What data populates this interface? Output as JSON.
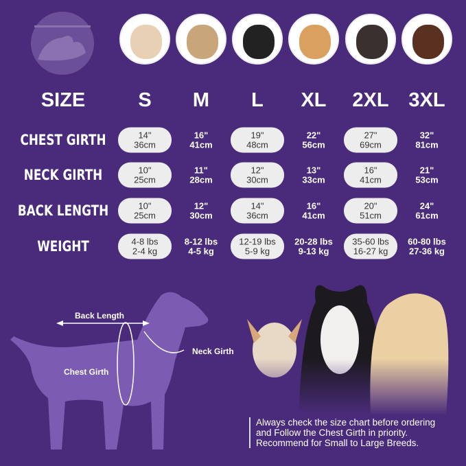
{
  "colors": {
    "background": "#4a2b7b",
    "pill": "#eeeded",
    "silhouette": "#7b5cb2"
  },
  "logo_icon": "dog-cat-icon",
  "sizes": [
    "S",
    "M",
    "L",
    "XL",
    "2XL",
    "3XL"
  ],
  "header_label": "SIZE",
  "rows": [
    {
      "label": "CHEST GIRTH",
      "values": [
        [
          "14\"",
          "36cm"
        ],
        [
          "16\"",
          "41cm"
        ],
        [
          "19\"",
          "48cm"
        ],
        [
          "22\"",
          "56cm"
        ],
        [
          "27\"",
          "69cm"
        ],
        [
          "32\"",
          "81cm"
        ]
      ]
    },
    {
      "label": "NECK GIRTH",
      "values": [
        [
          "10\"",
          "25cm"
        ],
        [
          "11\"",
          "28cm"
        ],
        [
          "12\"",
          "30cm"
        ],
        [
          "13\"",
          "33cm"
        ],
        [
          "16\"",
          "41cm"
        ],
        [
          "21\"",
          "53cm"
        ]
      ]
    },
    {
      "label": "BACK LENGTH",
      "values": [
        [
          "10\"",
          "25cm"
        ],
        [
          "12\"",
          "30cm"
        ],
        [
          "14\"",
          "36cm"
        ],
        [
          "16\"",
          "41cm"
        ],
        [
          "20\"",
          "51cm"
        ],
        [
          "24\"",
          "61cm"
        ]
      ]
    },
    {
      "label": "WEIGHT",
      "values": [
        [
          "4-8 lbs",
          "2-4 kg"
        ],
        [
          "8-12 lbs",
          "4-5 kg"
        ],
        [
          "12-19 lbs",
          "5-9 kg"
        ],
        [
          "20-28 lbs",
          "9-13 kg"
        ],
        [
          "35-60 lbs",
          "16-27 kg"
        ],
        [
          "60-80 lbs",
          "27-36 kg"
        ]
      ]
    }
  ],
  "diagram": {
    "back_length": "Back Length",
    "neck_girth": "Neck Girth",
    "chest_girth": "Chest Girth"
  },
  "note": [
    "Always check the size chart before ordering",
    "and Follow the Chest Girth in priority.",
    "Recommend for Small to Large Breeds."
  ]
}
